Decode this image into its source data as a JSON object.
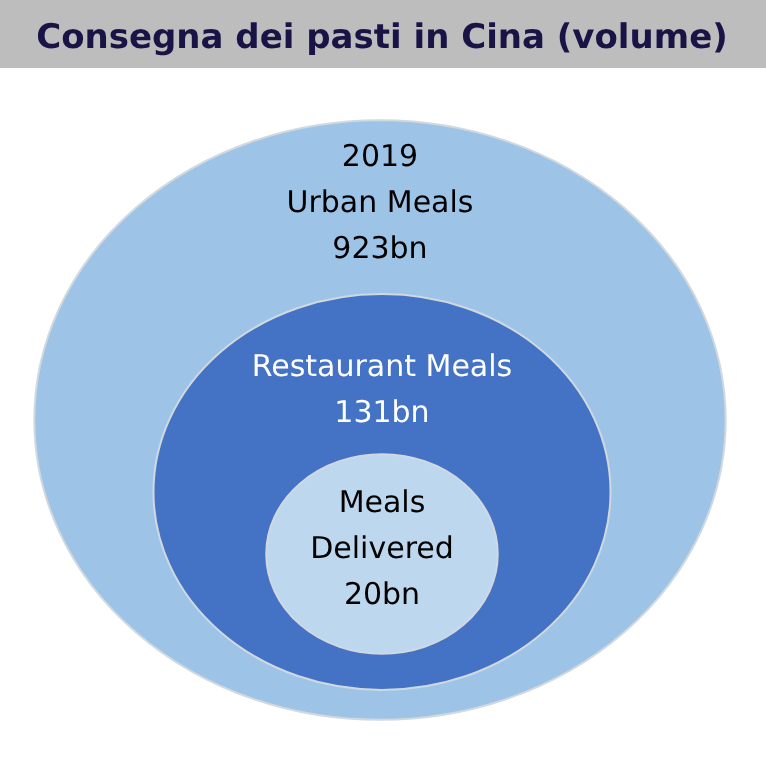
{
  "chart_data": {
    "type": "other",
    "title": "Consegna dei pasti in Cina (volume)",
    "categories": [
      "2019\nUrban Meals",
      "Restaurant Meals",
      "Meals\nDelivered"
    ],
    "values": [
      923,
      131,
      20
    ],
    "value_labels": [
      "923bn",
      "131bn",
      "20bn"
    ],
    "colors": [
      "#9dc3e6",
      "#4472c4",
      "#bdd7ee"
    ]
  }
}
